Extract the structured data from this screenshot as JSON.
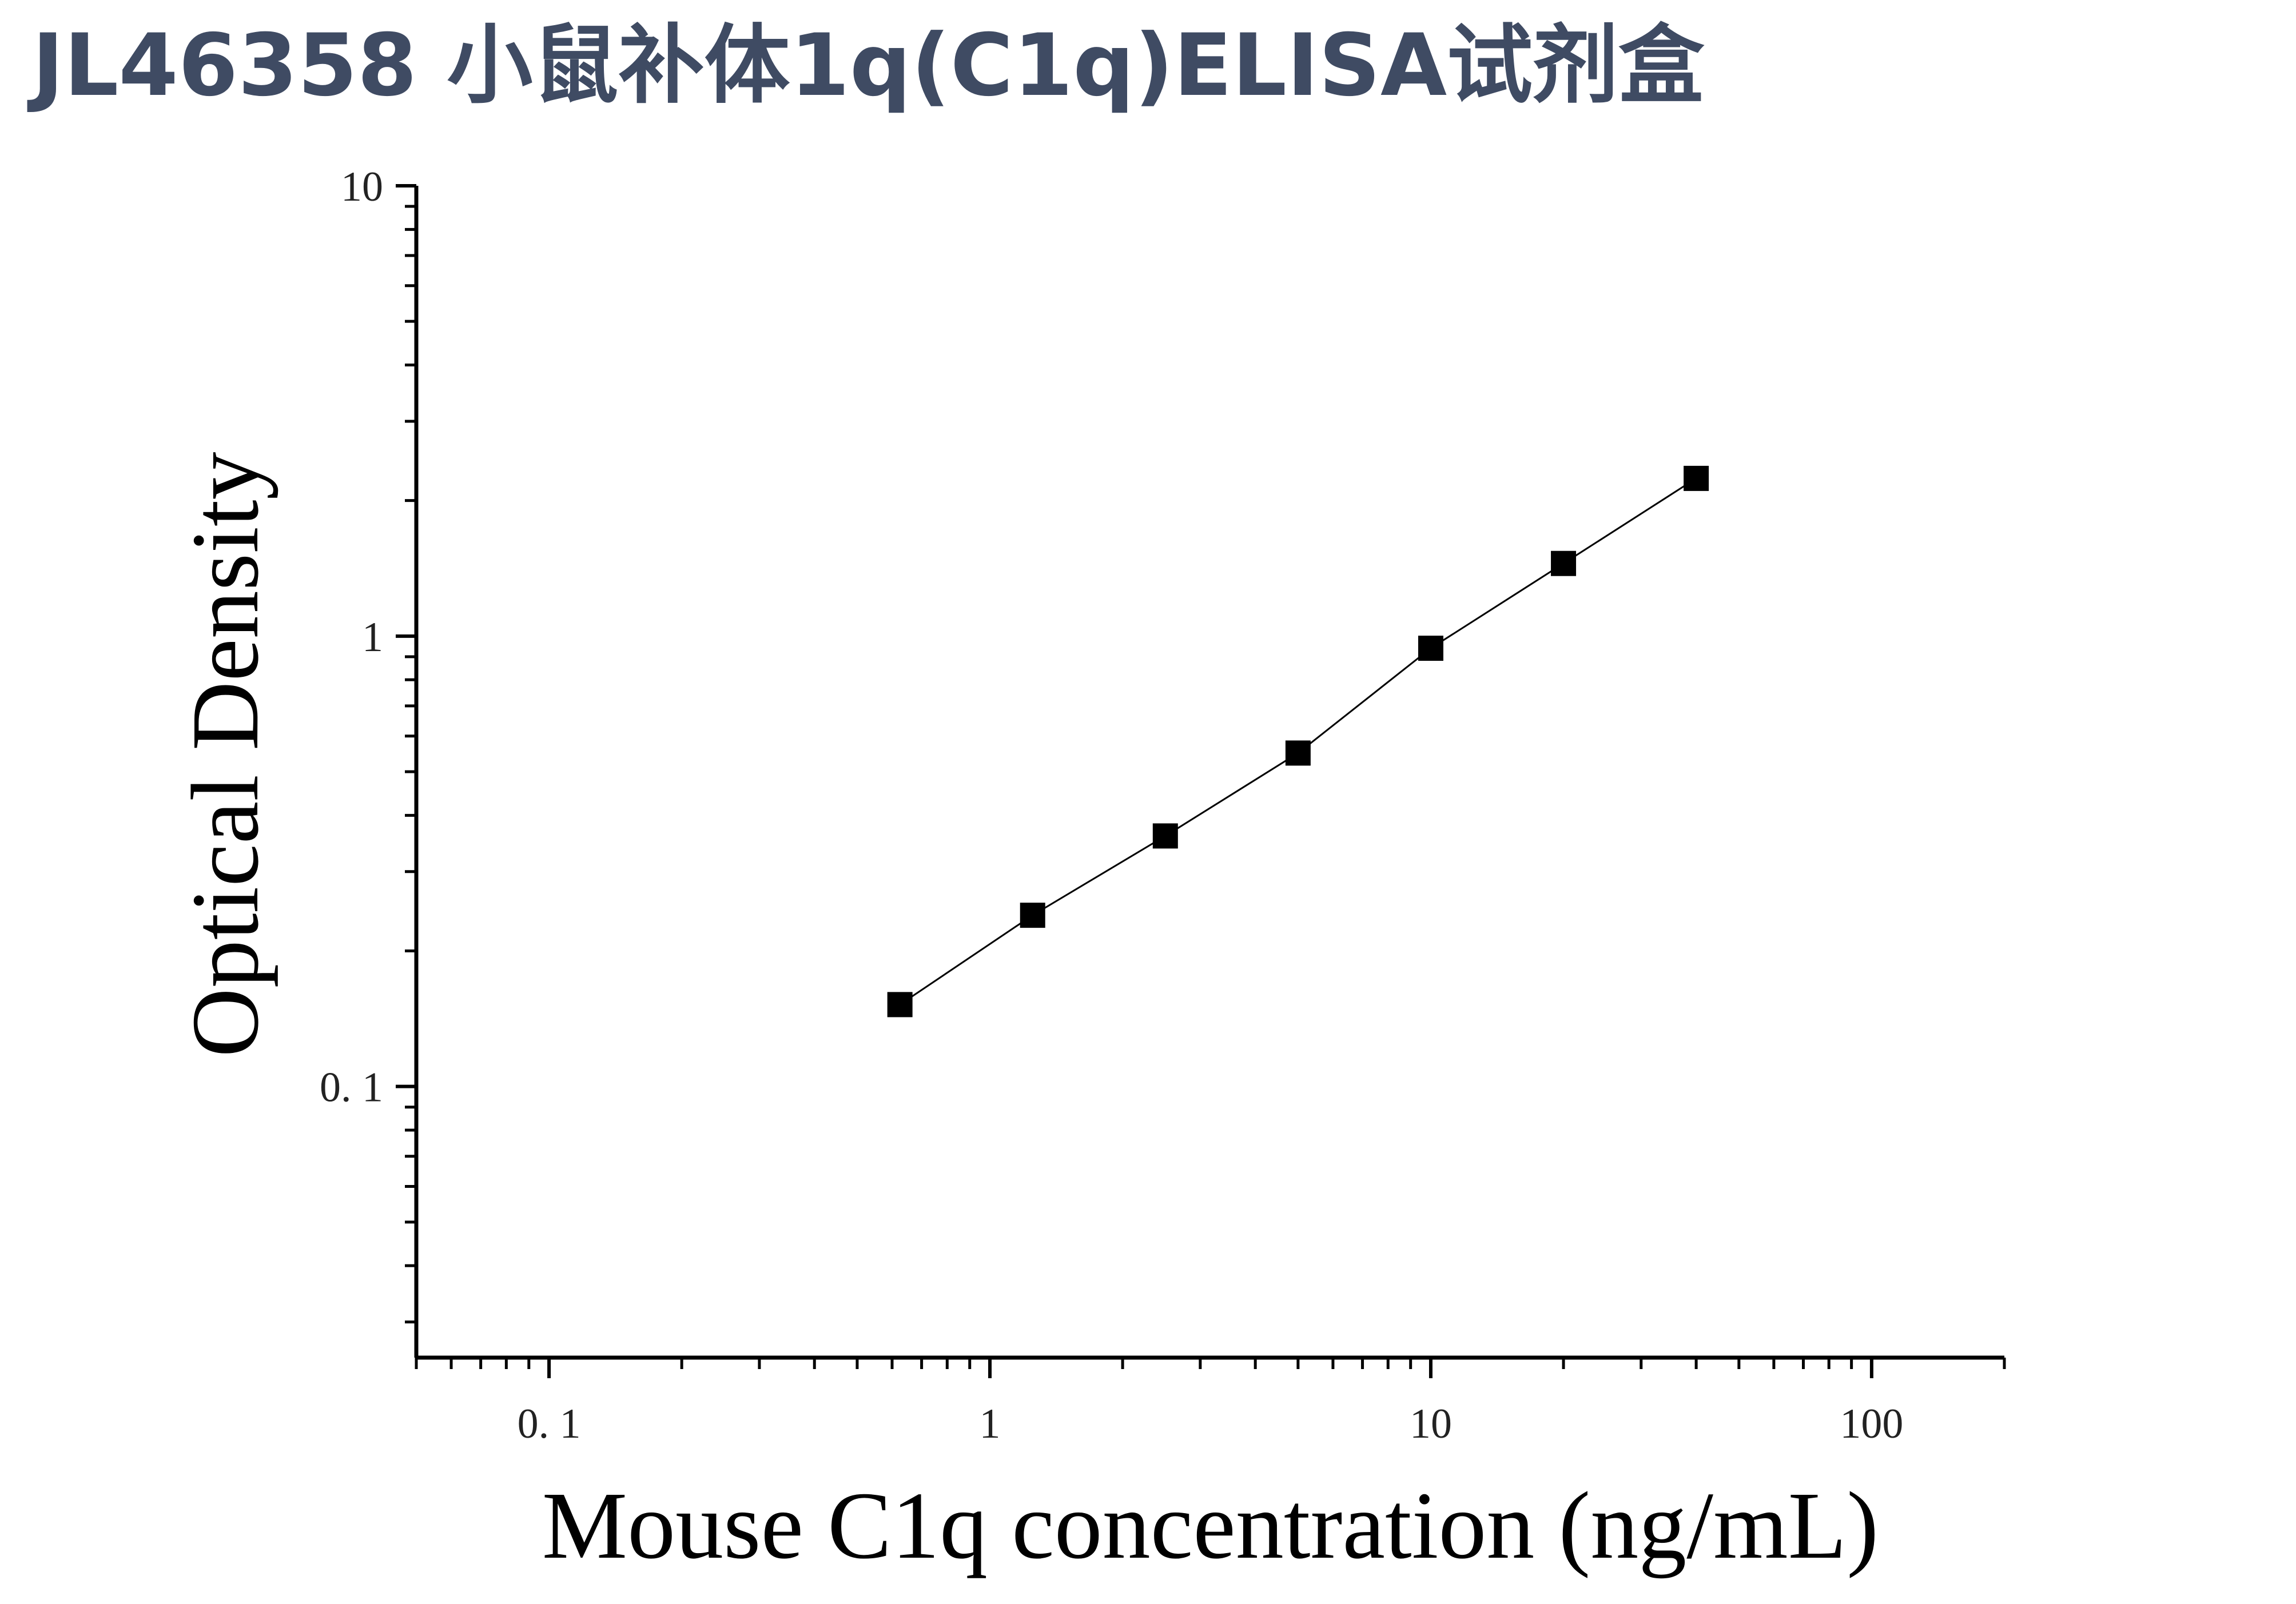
{
  "title": "JL46358 小鼠补体1q(C1q)ELISA试剂盒",
  "chart_data": {
    "type": "scatter",
    "title": "JL46358 小鼠补体1q(C1q)ELISA试剂盒",
    "xlabel": "Mouse C1q concentration (ng/mL)",
    "ylabel": "Optical Density",
    "xscale": "log",
    "yscale": "log",
    "xlim": [
      0.05,
      200
    ],
    "ylim": [
      0.025,
      10
    ],
    "x_ticks": [
      0.1,
      1,
      10,
      100
    ],
    "x_tick_labels": [
      "0. 1",
      "1",
      "10",
      "100"
    ],
    "y_ticks": [
      0.1,
      1,
      10
    ],
    "y_tick_labels": [
      "0. 1",
      "1",
      "10"
    ],
    "grid": false,
    "legend": "none",
    "marker": "square",
    "fit_line": true,
    "series": [
      {
        "x": [
          0.625,
          1.25,
          2.5,
          5,
          10,
          20,
          40
        ],
        "y": [
          0.152,
          0.24,
          0.36,
          0.55,
          0.94,
          1.45,
          2.24
        ]
      }
    ],
    "colors": {
      "marker": "#000000",
      "line": "#000000",
      "axis": "#000000",
      "title": "#3f4b63"
    }
  }
}
